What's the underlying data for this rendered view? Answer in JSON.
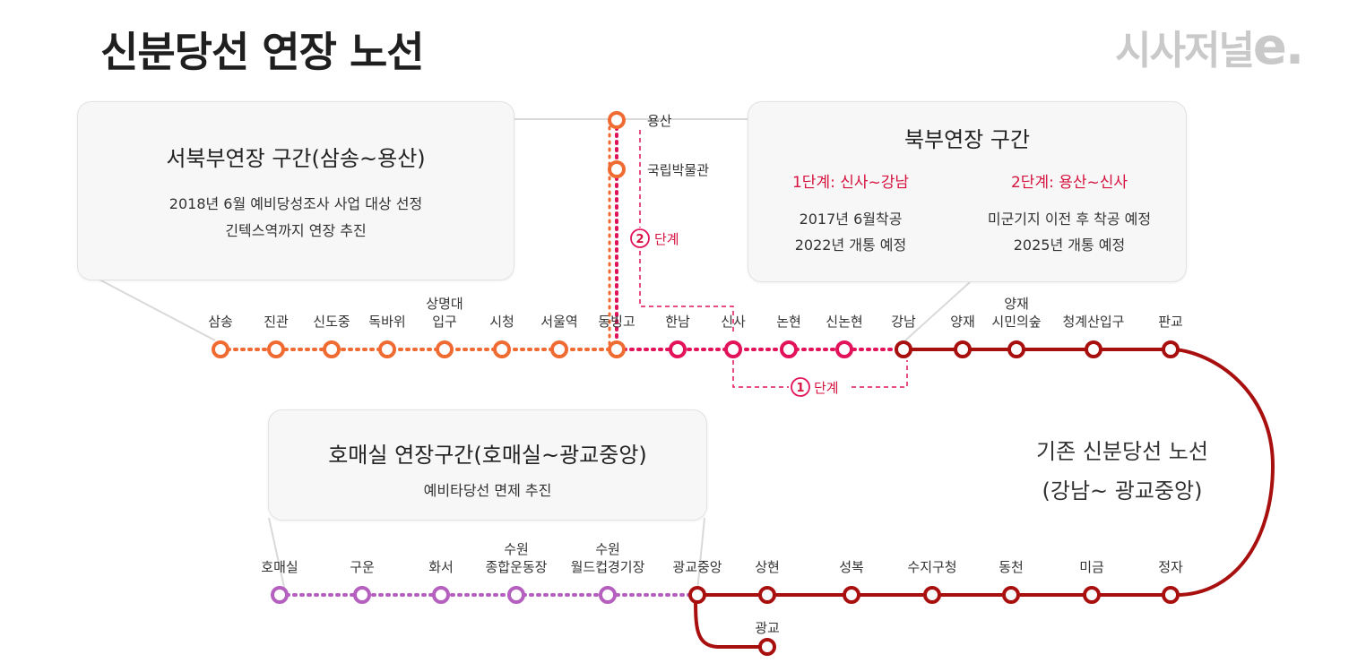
{
  "title": "신분당선 연장 노선",
  "logo": {
    "main": "시사저널",
    "e": "e."
  },
  "box_northwest": {
    "heading": "서북부연장 구간(삼송~용산)",
    "line1": "2018년 6월 예비당성조사 사업 대상 선정",
    "line2": "긴텍스역까지 연장 추진"
  },
  "box_north": {
    "heading": "북부연장 구간",
    "stage1_title": "1단계: 신사~강남",
    "stage1_line1": "2017년 6월착공",
    "stage1_line2": "2022년 개통 예정",
    "stage2_title": "2단계: 용산~신사",
    "stage2_line1": "미군기지 이전 후 착공 예정",
    "stage2_line2": "2025년 개통 예정"
  },
  "box_homaesil": {
    "heading": "호매실 연장구간(호매실~광교중앙)",
    "line1": "예비타당선 면제 추진"
  },
  "existing_line": {
    "line1": "기존 신분당선 노선",
    "line2": "(강남~ 광교중앙)"
  },
  "stage_markers": {
    "stage1_number": "1",
    "stage1_text": "단계",
    "stage2_number": "2",
    "stage2_text": "단계"
  },
  "branch_stations": {
    "yongsan": "용산",
    "museum": "국립박물관"
  },
  "top_stations": [
    {
      "name": [
        "삼송"
      ]
    },
    {
      "name": [
        "진관"
      ]
    },
    {
      "name": [
        "신도중"
      ]
    },
    {
      "name": [
        "독바위"
      ]
    },
    {
      "name": [
        "상명대",
        "입구"
      ]
    },
    {
      "name": [
        "시청"
      ]
    },
    {
      "name": [
        "서울역"
      ]
    },
    {
      "name": [
        "동빙고"
      ]
    },
    {
      "name": [
        "한남"
      ]
    },
    {
      "name": [
        "신사"
      ]
    },
    {
      "name": [
        "논현"
      ]
    },
    {
      "name": [
        "신논현"
      ]
    },
    {
      "name": [
        "강남"
      ]
    },
    {
      "name": [
        "양재"
      ]
    },
    {
      "name": [
        "양재",
        "시민의숲"
      ]
    },
    {
      "name": [
        "청계산입구"
      ]
    },
    {
      "name": [
        "판교"
      ]
    }
  ],
  "bottom_stations": [
    {
      "name": [
        "호매실"
      ]
    },
    {
      "name": [
        "구운"
      ]
    },
    {
      "name": [
        "화서"
      ]
    },
    {
      "name": [
        "수원",
        "종합운동장"
      ]
    },
    {
      "name": [
        "수원",
        "월드컵경기장"
      ]
    },
    {
      "name": [
        "광교중앙"
      ]
    },
    {
      "name": [
        "상현"
      ]
    },
    {
      "name": [
        "성복"
      ]
    },
    {
      "name": [
        "수지구청"
      ]
    },
    {
      "name": [
        "동천"
      ]
    },
    {
      "name": [
        "미금"
      ]
    },
    {
      "name": [
        "정자"
      ]
    }
  ],
  "gwanggyo": {
    "name": "광교"
  },
  "colors": {
    "orange": "#f06b32",
    "pink": "#e2135a",
    "red": "#a8100f",
    "purple": "#b55fbe",
    "stage_red": "#d5133f"
  }
}
